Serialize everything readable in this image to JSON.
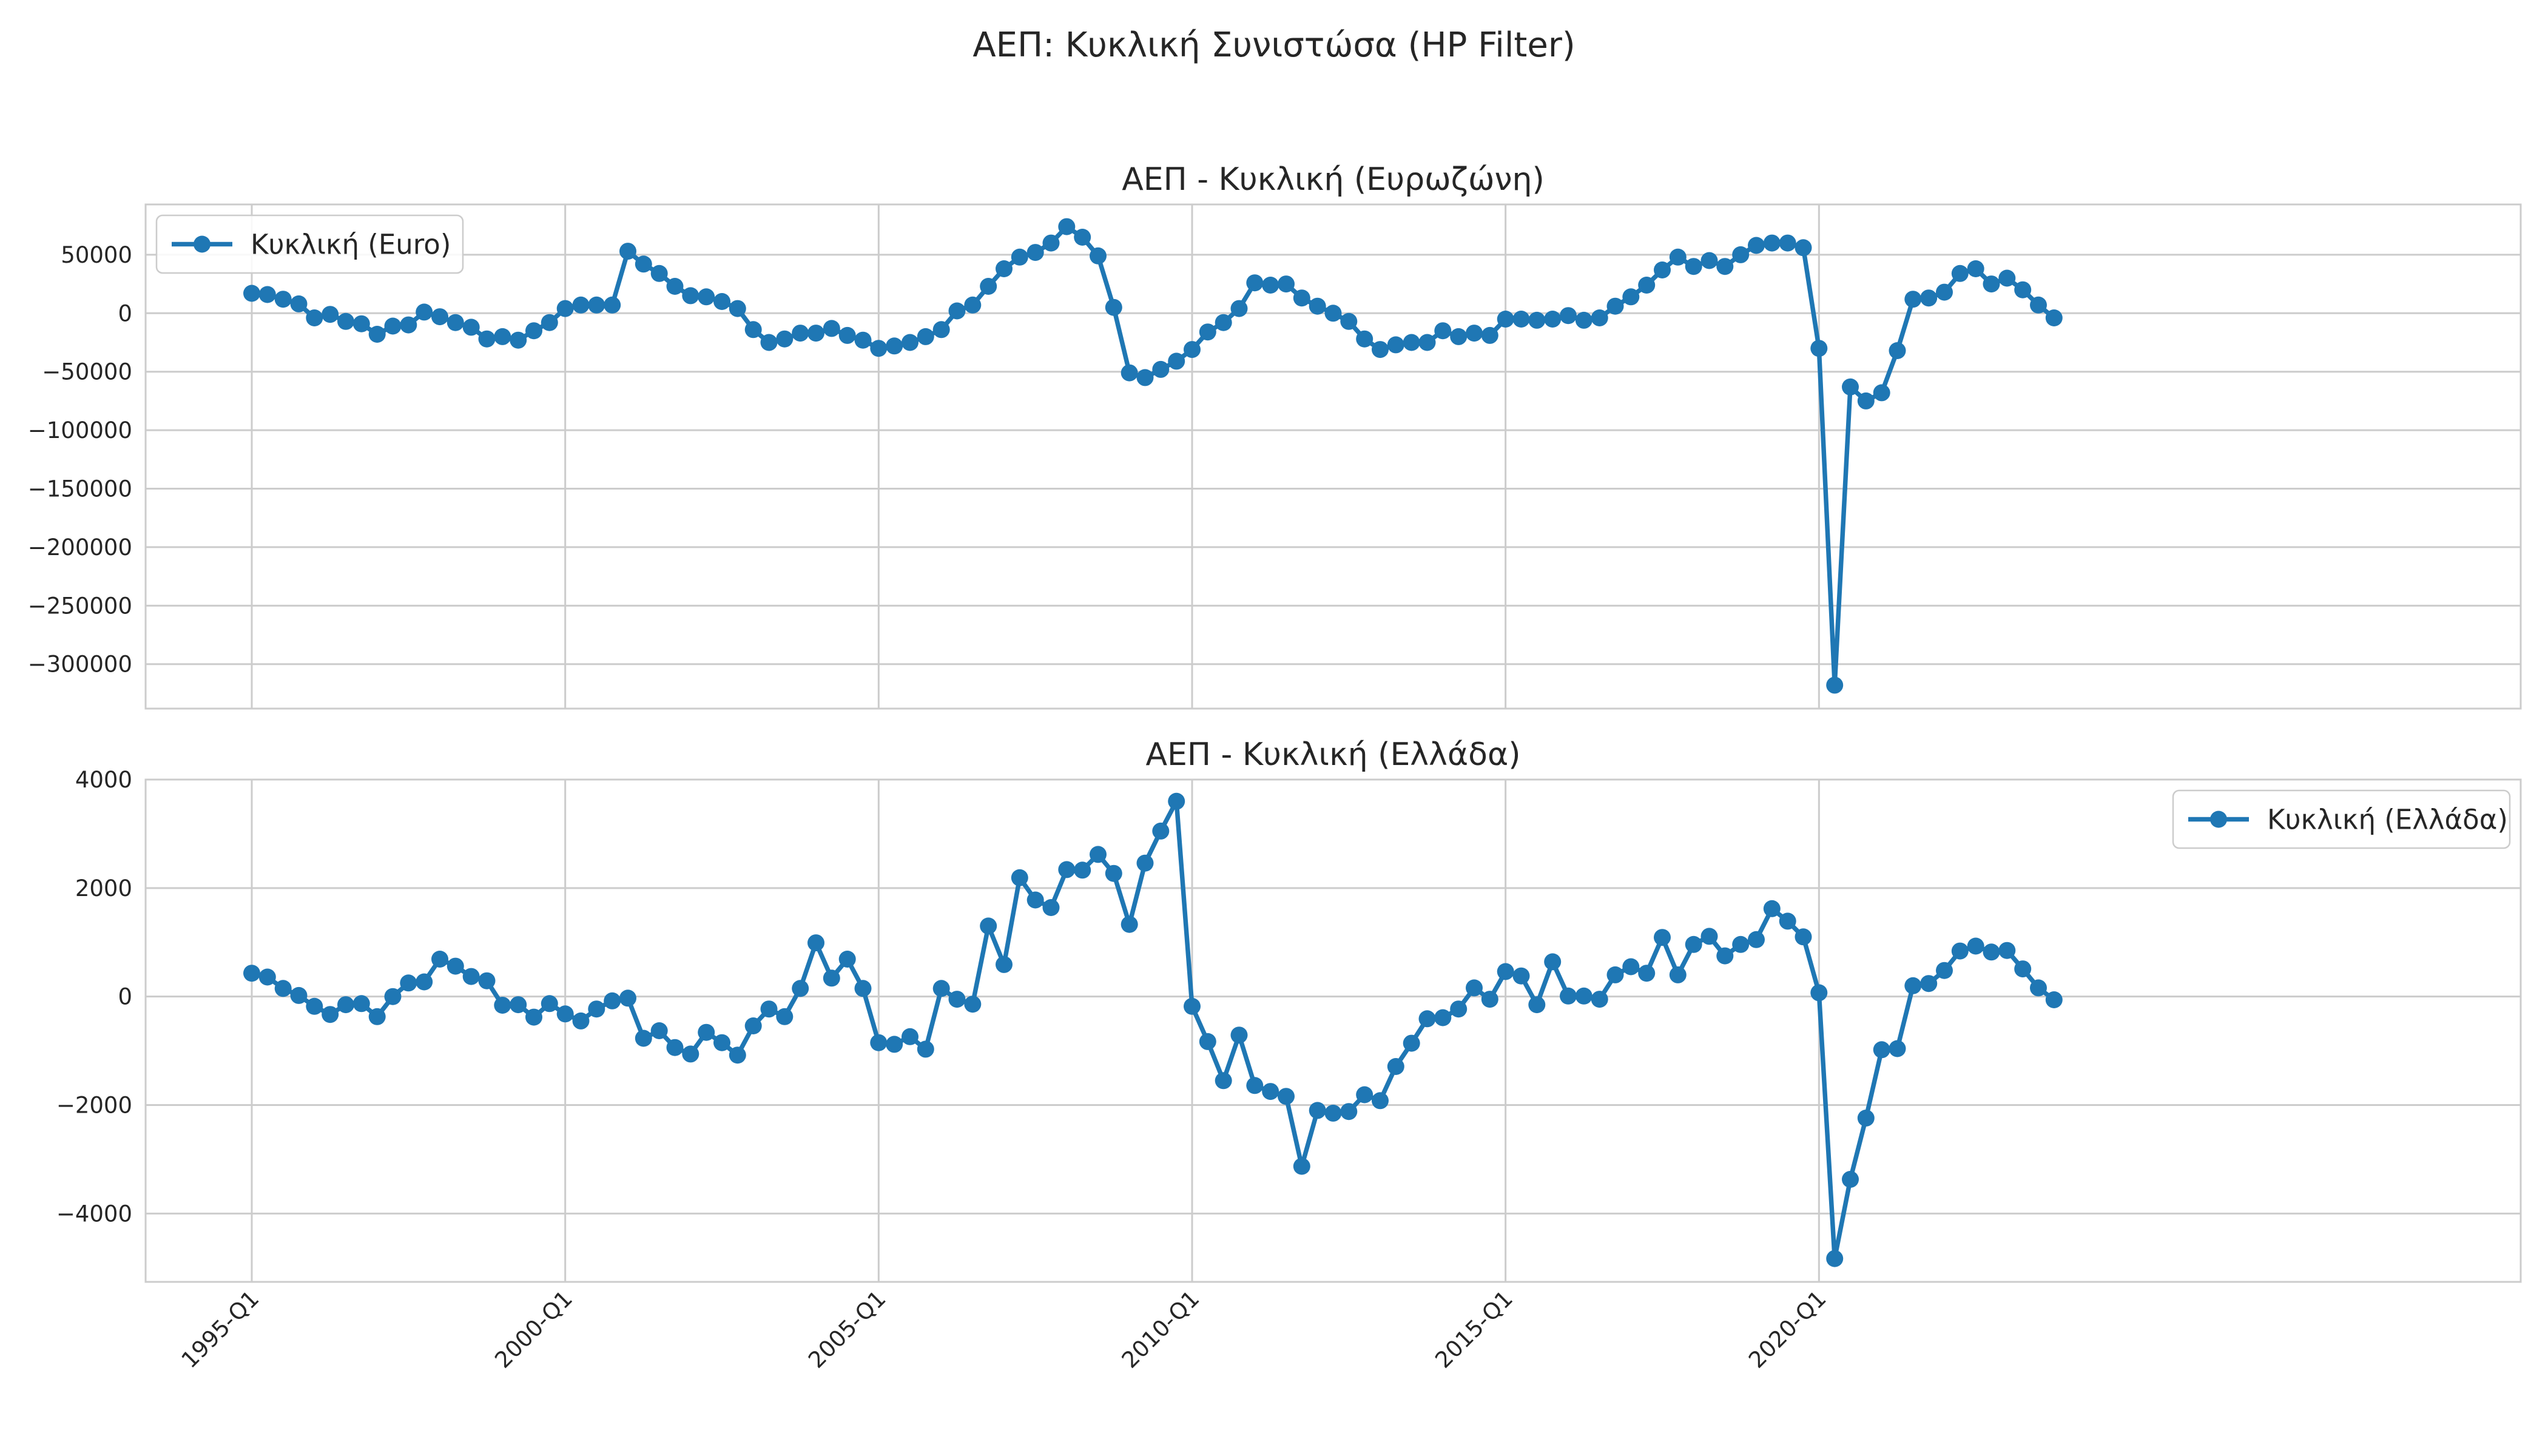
{
  "figure_title": "ΑΕΠ: Κυκλική Συνιστώσα (HP Filter)",
  "x_tick_labels": [
    "1995-Q1",
    "2000-Q1",
    "2005-Q1",
    "2010-Q1",
    "2015-Q1",
    "2020-Q1"
  ],
  "colors": {
    "series": "#1f77b4",
    "grid": "#cccccc",
    "text": "#262626",
    "background": "#ffffff"
  },
  "chart_data": [
    {
      "type": "line",
      "title": "ΑΕΠ - Κυκλική (Ευρωζώνη)",
      "xlabel": "",
      "ylabel": "",
      "x_start": "1995-Q1",
      "x_end": "2023-Q4",
      "x_ticks": [
        "1995-Q1",
        "2000-Q1",
        "2005-Q1",
        "2010-Q1",
        "2015-Q1",
        "2020-Q1"
      ],
      "y_ticks": [
        50000,
        0,
        -50000,
        -100000,
        -150000,
        -200000,
        -250000,
        -300000
      ],
      "y_tick_labels": [
        "50000",
        "0",
        "−50000",
        "−100000",
        "−150000",
        "−200000",
        "−250000",
        "−300000"
      ],
      "ylim": [
        -338000,
        93000
      ],
      "grid": true,
      "legend_position": "upper left",
      "series": [
        {
          "name": "Κυκλική (Euro)",
          "marker": "circle",
          "values": [
            17000,
            16000,
            12000,
            8000,
            -4000,
            -1000,
            -7000,
            -9000,
            -18000,
            -11000,
            -10000,
            1000,
            -3000,
            -8000,
            -12000,
            -22000,
            -20000,
            -23000,
            -15000,
            -8000,
            4000,
            7000,
            7000,
            7000,
            53000,
            42000,
            34000,
            23000,
            15000,
            14000,
            10000,
            4000,
            -14000,
            -25000,
            -22000,
            -17000,
            -17000,
            -13000,
            -19000,
            -23000,
            -30000,
            -28000,
            -25000,
            -20000,
            -14000,
            2000,
            7000,
            23000,
            38000,
            48000,
            52000,
            60000,
            74000,
            65000,
            49000,
            5000,
            -51000,
            -55000,
            -48000,
            -41000,
            -31000,
            -16000,
            -8000,
            4000,
            26000,
            24000,
            25000,
            13000,
            6000,
            0,
            -7000,
            -22000,
            -31000,
            -27000,
            -25000,
            -25000,
            -15000,
            -20000,
            -17000,
            -19000,
            -5000,
            -5000,
            -6000,
            -5000,
            -2000,
            -6000,
            -4000,
            6000,
            14000,
            24000,
            37000,
            48000,
            40000,
            45000,
            40000,
            50000,
            58000,
            60000,
            60000,
            56000,
            -30000,
            -318000,
            -63000,
            -75000,
            -68000,
            -32000,
            12000,
            13000,
            18000,
            34000,
            38000,
            25000,
            30000,
            20000,
            7000,
            -4000
          ]
        }
      ]
    },
    {
      "type": "line",
      "title": "ΑΕΠ - Κυκλική (Ελλάδα)",
      "xlabel": "",
      "ylabel": "",
      "x_start": "1995-Q1",
      "x_end": "2023-Q4",
      "x_ticks": [
        "1995-Q1",
        "2000-Q1",
        "2005-Q1",
        "2010-Q1",
        "2015-Q1",
        "2020-Q1"
      ],
      "y_ticks": [
        4000,
        2000,
        0,
        -2000,
        -4000
      ],
      "y_tick_labels": [
        "4000",
        "2000",
        "0",
        "−2000",
        "−4000"
      ],
      "ylim": [
        -5260,
        4000
      ],
      "grid": true,
      "legend_position": "upper right",
      "series": [
        {
          "name": "Κυκλική (Ελλάδα)",
          "marker": "circle",
          "values": [
            430,
            360,
            150,
            20,
            -180,
            -330,
            -150,
            -130,
            -370,
            0,
            250,
            270,
            690,
            560,
            370,
            290,
            -160,
            -150,
            -380,
            -130,
            -320,
            -450,
            -230,
            -80,
            -30,
            -770,
            -630,
            -940,
            -1060,
            -660,
            -850,
            -1080,
            -540,
            -230,
            -370,
            150,
            990,
            340,
            690,
            150,
            -850,
            -880,
            -740,
            -970,
            150,
            -50,
            -140,
            1300,
            590,
            2190,
            1780,
            1640,
            2340,
            2330,
            2620,
            2270,
            1330,
            2460,
            3050,
            3600,
            -180,
            -830,
            -1550,
            -710,
            -1640,
            -1750,
            -1840,
            -3130,
            -2100,
            -2150,
            -2120,
            -1810,
            -1920,
            -1290,
            -860,
            -410,
            -390,
            -230,
            160,
            -50,
            460,
            380,
            -150,
            640,
            10,
            10,
            -50,
            400,
            550,
            430,
            1090,
            400,
            960,
            1110,
            750,
            960,
            1050,
            1620,
            1390,
            1100,
            70,
            -4830,
            -3370,
            -2240,
            -980,
            -960,
            200,
            240,
            480,
            840,
            930,
            820,
            850,
            510,
            160,
            -60
          ]
        }
      ]
    }
  ]
}
